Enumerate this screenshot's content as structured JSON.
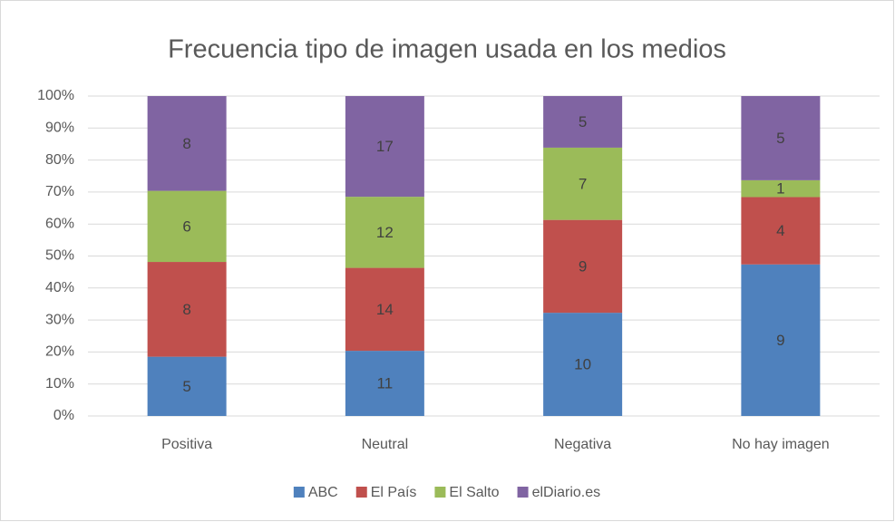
{
  "chart_data": {
    "type": "bar",
    "stacked": "percent",
    "title": "Frecuencia tipo de imagen usada en los medios",
    "categories": [
      "Positiva",
      "Neutral",
      "Negativa",
      "No hay imagen"
    ],
    "series": [
      {
        "name": "ABC",
        "color": "#4f81bd",
        "values": [
          5,
          11,
          10,
          9
        ]
      },
      {
        "name": "El País",
        "color": "#c0504d",
        "values": [
          8,
          14,
          9,
          4
        ]
      },
      {
        "name": "El Salto",
        "color": "#9bbb59",
        "values": [
          6,
          12,
          7,
          1
        ]
      },
      {
        "name": "elDiario.es",
        "color": "#8064a2",
        "values": [
          8,
          17,
          5,
          5
        ]
      }
    ],
    "ylim": [
      0,
      100
    ],
    "yticks": [
      {
        "value": 0,
        "label": "0%"
      },
      {
        "value": 10,
        "label": "10%"
      },
      {
        "value": 20,
        "label": "20%"
      },
      {
        "value": 30,
        "label": "30%"
      },
      {
        "value": 40,
        "label": "40%"
      },
      {
        "value": 50,
        "label": "50%"
      },
      {
        "value": 60,
        "label": "60%"
      },
      {
        "value": 70,
        "label": "70%"
      },
      {
        "value": 80,
        "label": "80%"
      },
      {
        "value": 90,
        "label": "90%"
      },
      {
        "value": 100,
        "label": "100%"
      }
    ],
    "grid": true,
    "legend": "bottom"
  }
}
